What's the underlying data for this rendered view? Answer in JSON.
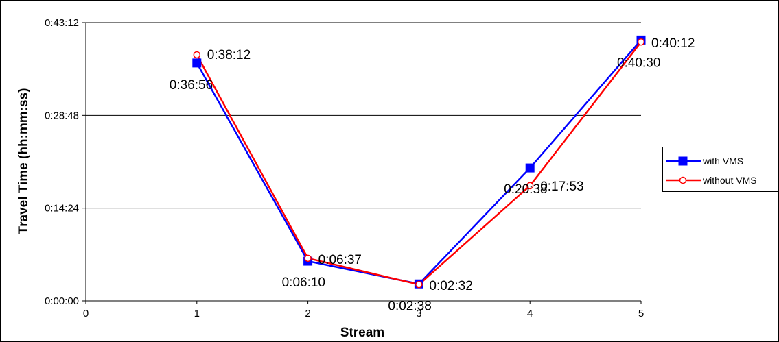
{
  "chart_data": {
    "type": "line",
    "title": "",
    "xlabel": "Stream",
    "ylabel": "Travel Time (hh:mm:ss)",
    "x_ticks": [
      "0",
      "1",
      "2",
      "3",
      "4",
      "5"
    ],
    "xlim": [
      0,
      5
    ],
    "y_ticks": [
      "0:00:00",
      "0:14:24",
      "0:28:48",
      "0:43:12"
    ],
    "ylim_seconds": [
      0,
      2592
    ],
    "grid": "horizontal",
    "legend_position": "right",
    "series": [
      {
        "name": "with VMS",
        "color": "#0000ff",
        "marker": "square-filled",
        "x": [
          1,
          2,
          3,
          4,
          5
        ],
        "values_seconds": [
          2216,
          370,
          158,
          1238,
          2430
        ],
        "labels": [
          "0:36:56",
          "0:06:10",
          "0:02:38",
          "0:20:38",
          "0:40:30"
        ]
      },
      {
        "name": "without VMS",
        "color": "#ff0000",
        "marker": "circle-open",
        "x": [
          1,
          2,
          3,
          4,
          5
        ],
        "values_seconds": [
          2292,
          397,
          152,
          1073,
          2412
        ],
        "labels": [
          "0:38:12",
          "0:06:37",
          "0:02:32",
          "0:17:53",
          "0:40:12"
        ]
      }
    ]
  }
}
